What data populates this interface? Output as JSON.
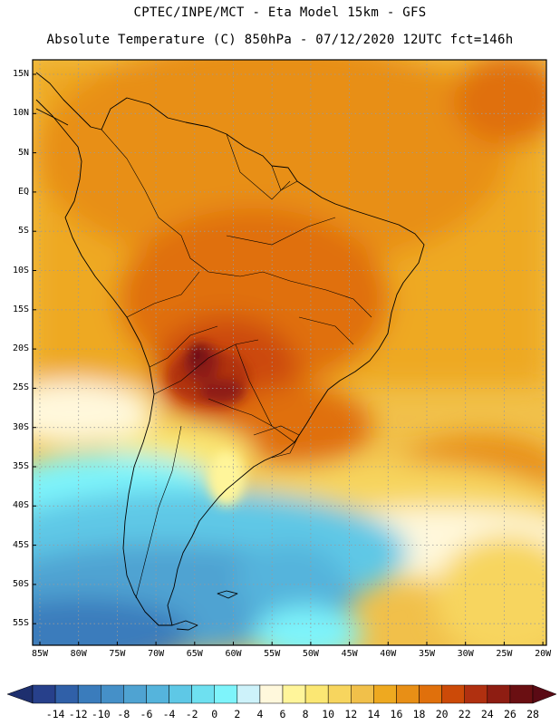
{
  "header": {
    "title_line1": "CPTEC/INPE/MCT -  Eta Model 15km - GFS",
    "title_line2": "Absolute Temperature (C) 850hPa - 07/12/2020 12UTC fct=146h"
  },
  "axes": {
    "lat_labels": [
      "15N",
      "10N",
      "5N",
      "EQ",
      "5S",
      "10S",
      "15S",
      "20S",
      "25S",
      "30S",
      "35S",
      "40S",
      "45S",
      "50S",
      "55S"
    ],
    "lon_labels": [
      "85W",
      "80W",
      "75W",
      "70W",
      "65W",
      "60W",
      "55W",
      "50W",
      "45W",
      "40W",
      "35W",
      "30W",
      "25W",
      "20W"
    ]
  },
  "colorbar": {
    "labels": [
      "-14",
      "-12",
      "-10",
      "-8",
      "-6",
      "-4",
      "-2",
      "0",
      "2",
      "4",
      "6",
      "8",
      "10",
      "12",
      "14",
      "16",
      "18",
      "20",
      "22",
      "24",
      "26",
      "28"
    ],
    "colors": [
      "#27408b",
      "#3060a8",
      "#3a7cbc",
      "#4590c8",
      "#4fa3d2",
      "#55b4dc",
      "#5ec8e6",
      "#6ee0f0",
      "#7ef4fb",
      "#cdf2fa",
      "#fff8dc",
      "#fff59a",
      "#fbe773",
      "#f7d55e",
      "#f1c04a",
      "#eea920",
      "#e88f16",
      "#e0700c",
      "#cc4a08",
      "#b03010",
      "#8e1d12",
      "#6a0f12"
    ]
  }
}
